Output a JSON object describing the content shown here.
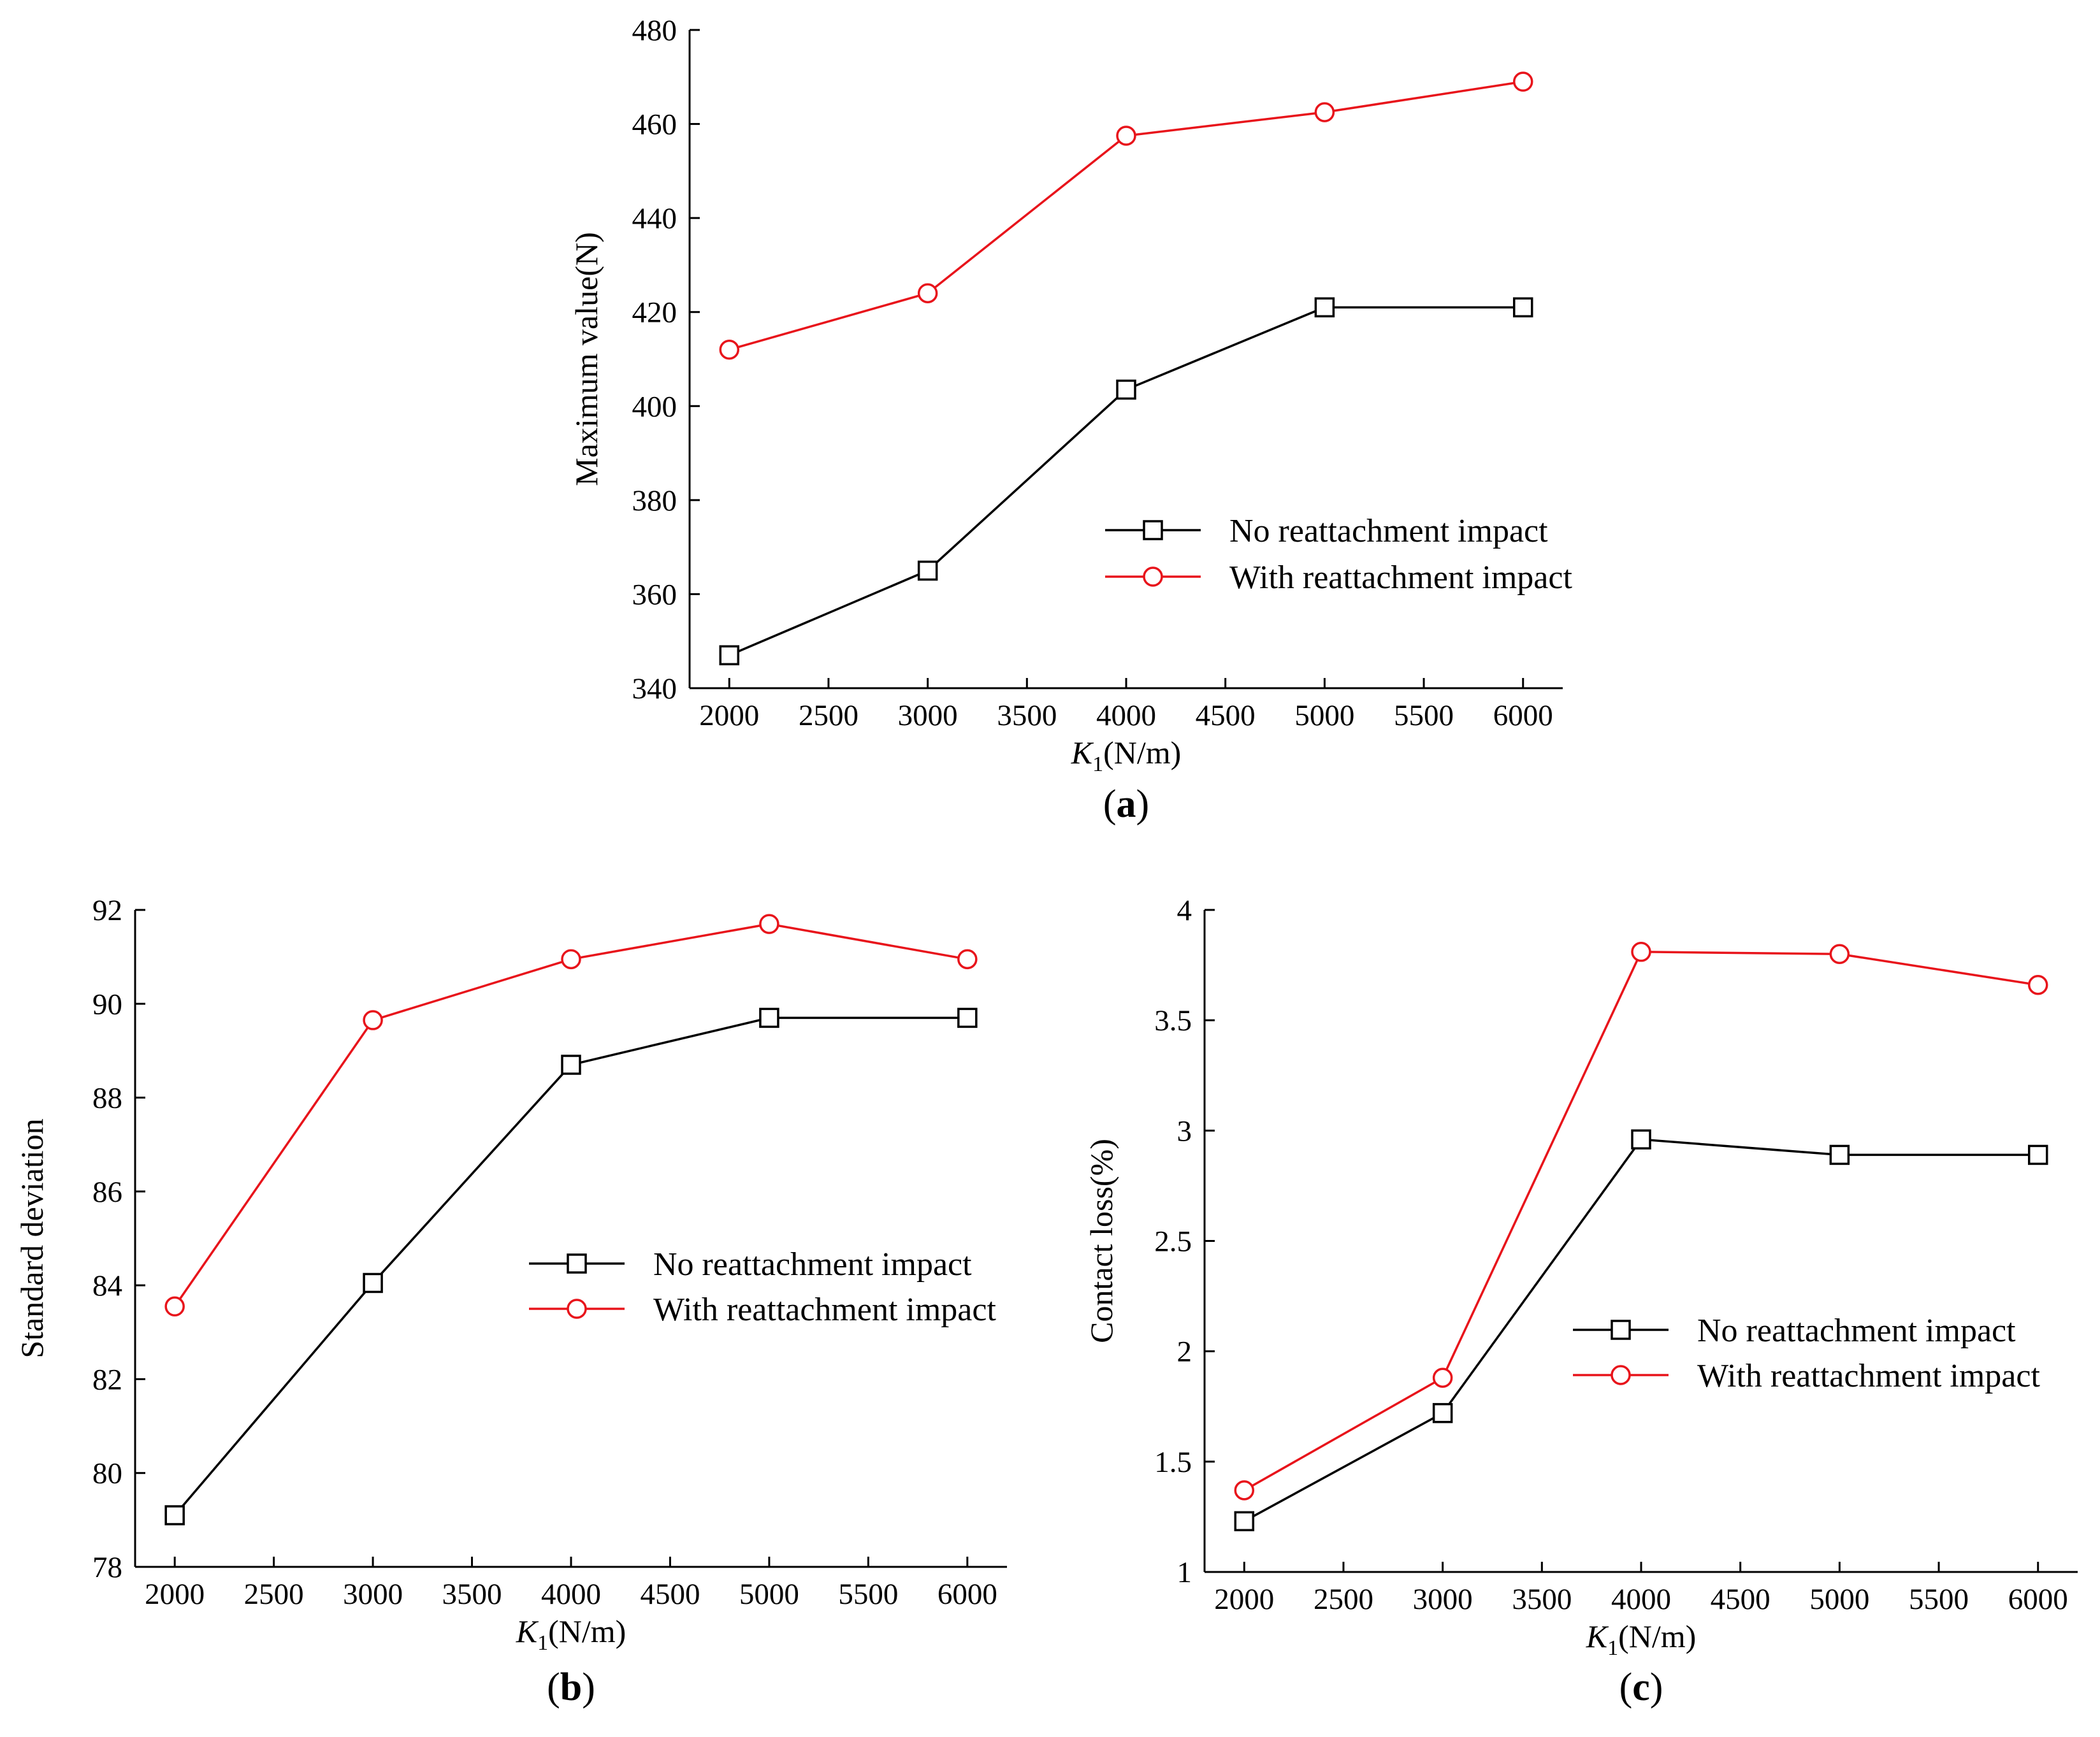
{
  "colors": {
    "no_impact": "#000000",
    "with_impact": "#e8141b",
    "axis": "#000000"
  },
  "chart_data": [
    {
      "id": "a",
      "type": "line",
      "caption": "a",
      "xlabel": {
        "italic": "K",
        "sub": "1",
        "rest": "(N/m)"
      },
      "ylabel": "Maximum value(N)",
      "xlim": [
        1800,
        6200
      ],
      "ylim": [
        340,
        480
      ],
      "xticks": [
        2000,
        2500,
        3000,
        3500,
        4000,
        4500,
        5000,
        5500,
        6000
      ],
      "yticks": [
        340,
        360,
        380,
        400,
        420,
        440,
        460,
        480
      ],
      "x": [
        2000,
        3000,
        4000,
        5000,
        6000
      ],
      "series": [
        {
          "name": "No reattachment impact",
          "marker": "square",
          "color": "#000000",
          "values": [
            347,
            365,
            403.5,
            421,
            421
          ]
        },
        {
          "name": "With reattachment impact",
          "marker": "circle",
          "color": "#e8141b",
          "values": [
            412,
            424,
            457.5,
            462.5,
            469
          ]
        }
      ]
    },
    {
      "id": "b",
      "type": "line",
      "caption": "b",
      "xlabel": {
        "italic": "K",
        "sub": "1",
        "rest": "(N/m)"
      },
      "ylabel": "Standard deviation",
      "xlim": [
        1800,
        6200
      ],
      "ylim": [
        78,
        92
      ],
      "xticks": [
        2000,
        2500,
        3000,
        3500,
        4000,
        4500,
        5000,
        5500,
        6000
      ],
      "yticks": [
        78,
        80,
        82,
        84,
        86,
        88,
        90,
        92
      ],
      "x": [
        2000,
        3000,
        4000,
        5000,
        6000
      ],
      "series": [
        {
          "name": "No reattachment impact",
          "marker": "square",
          "color": "#000000",
          "values": [
            79.1,
            84.05,
            88.7,
            89.7,
            89.7
          ]
        },
        {
          "name": "With reattachment impact",
          "marker": "circle",
          "color": "#e8141b",
          "values": [
            83.55,
            89.65,
            90.95,
            91.7,
            90.95
          ]
        }
      ]
    },
    {
      "id": "c",
      "type": "line",
      "caption": "c",
      "xlabel": {
        "italic": "K",
        "sub": "1",
        "rest": "(N/m)"
      },
      "ylabel": "Contact loss(%)",
      "xlim": [
        1800,
        6200
      ],
      "ylim": [
        1,
        4
      ],
      "xticks": [
        2000,
        2500,
        3000,
        3500,
        4000,
        4500,
        5000,
        5500,
        6000
      ],
      "yticks": [
        1,
        1.5,
        2,
        2.5,
        3,
        3.5,
        4
      ],
      "x": [
        2000,
        3000,
        4000,
        5000,
        6000
      ],
      "series": [
        {
          "name": "No reattachment impact",
          "marker": "square",
          "color": "#000000",
          "values": [
            1.23,
            1.72,
            2.96,
            2.89,
            2.89
          ]
        },
        {
          "name": "With reattachment impact",
          "marker": "circle",
          "color": "#e8141b",
          "values": [
            1.37,
            1.88,
            3.81,
            3.8,
            3.66
          ]
        }
      ]
    }
  ]
}
